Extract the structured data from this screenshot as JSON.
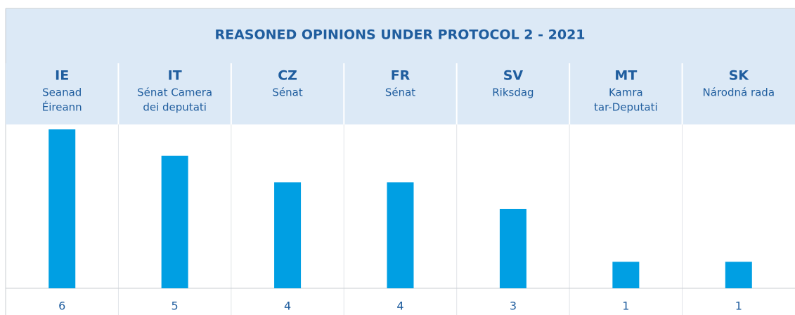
{
  "chart_data": {
    "type": "bar",
    "title": "REASONED OPINIONS UNDER PROTOCOL 2 - 2021",
    "categories": [
      "IE",
      "IT",
      "CZ",
      "FR",
      "SV",
      "MT",
      "SK"
    ],
    "chambers": [
      [
        "Seanad",
        "Éireann"
      ],
      [
        "Sénat Camera",
        "dei deputati"
      ],
      [
        "Sénat"
      ],
      [
        "Sénat"
      ],
      [
        "Riksdag"
      ],
      [
        "Kamra",
        "tar-Deputati"
      ],
      [
        "Národná rada"
      ]
    ],
    "values": [
      6,
      5,
      4,
      4,
      3,
      1,
      1
    ],
    "color": "#009fe3"
  }
}
